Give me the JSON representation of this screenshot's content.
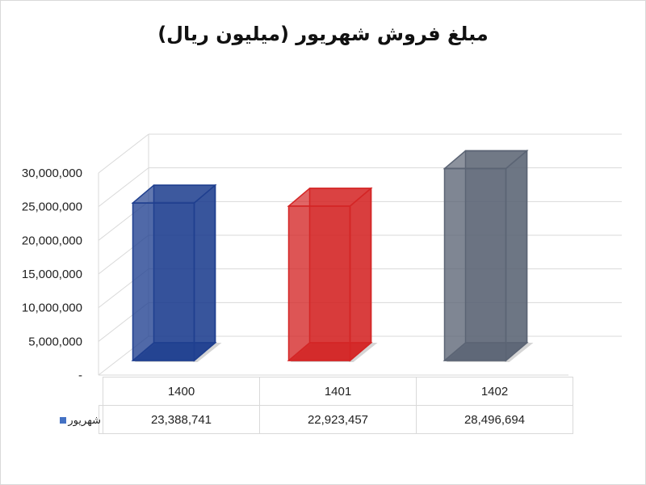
{
  "chart_data": {
    "type": "bar",
    "title": "مبلغ فروش شهریور (میلیون ریال)",
    "categories": [
      "1400",
      "1401",
      "1402"
    ],
    "series": [
      {
        "name": "شهریور",
        "values": [
          23388741,
          22923457,
          28496694
        ]
      }
    ],
    "value_labels": [
      "23,388,741",
      "22,923,457",
      "28,496,694"
    ],
    "ylim": [
      0,
      30000000
    ],
    "yticks": [
      0,
      5000000,
      10000000,
      15000000,
      20000000,
      25000000,
      30000000
    ],
    "ytick_labels": [
      "-",
      "5,000,000",
      "10,000,000",
      "15,000,000",
      "20,000,000",
      "25,000,000",
      "30,000,000"
    ],
    "bar_colors": [
      "#1f3f8f",
      "#d42525",
      "#5b6474"
    ],
    "grid": true,
    "legend": "data-table"
  }
}
